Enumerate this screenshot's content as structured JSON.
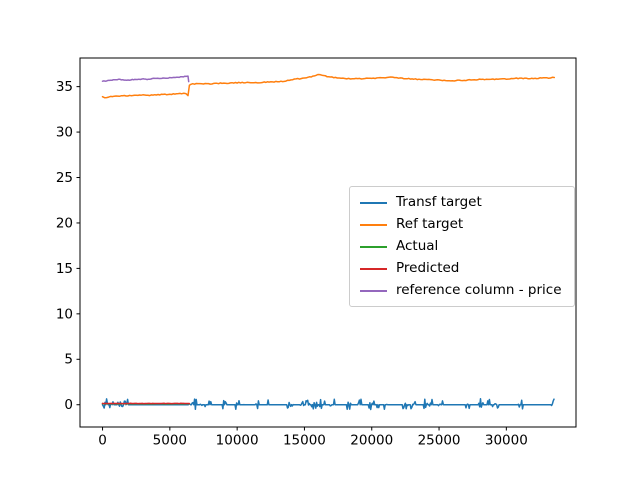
{
  "figure": {
    "background_color": "#ffffff",
    "axes_edge_color": "#000000",
    "legend_edge_color": "#cccccc"
  },
  "chart_data": {
    "type": "line",
    "title": "",
    "xlabel": "",
    "ylabel": "",
    "grid": false,
    "legend_position": "center-right",
    "xlim": [
      -1675,
      35175
    ],
    "ylim": [
      -2.45,
      38.15
    ],
    "x_ticks": [
      0,
      5000,
      10000,
      15000,
      20000,
      25000,
      30000
    ],
    "y_ticks": [
      0,
      5,
      10,
      15,
      20,
      25,
      30,
      35
    ],
    "series": [
      {
        "name": "Transf target",
        "color": "#1f77b4",
        "generator": "noisy-baseline",
        "x_range": [
          0,
          33560
        ],
        "step": 60,
        "baseline": 0,
        "spike_prob": 0.5,
        "spike_amplitude": [
          -0.52,
          0.66
        ],
        "seed": 42,
        "spike_clusters": [
          [
            0,
            1900
          ],
          [
            6350,
            8300
          ],
          [
            8900,
            9250
          ],
          [
            9900,
            10500
          ],
          [
            11400,
            11650
          ],
          [
            12200,
            12350
          ],
          [
            13700,
            14250
          ],
          [
            14700,
            16600
          ],
          [
            16900,
            17350
          ],
          [
            18100,
            18500
          ],
          [
            19000,
            19450
          ],
          [
            19800,
            20600
          ],
          [
            20900,
            21450
          ],
          [
            22300,
            23300
          ],
          [
            23800,
            24600
          ],
          [
            24800,
            25450
          ],
          [
            26900,
            27600
          ],
          [
            27900,
            28300
          ],
          [
            28600,
            29400
          ],
          [
            30900,
            31250
          ],
          [
            33350,
            33560
          ]
        ]
      },
      {
        "name": "Ref target",
        "color": "#ff7f0e",
        "noise": 0.045,
        "noise_step": 130,
        "seed": 7,
        "points": [
          [
            0,
            33.85
          ],
          [
            300,
            33.8
          ],
          [
            600,
            33.9
          ],
          [
            1000,
            33.95
          ],
          [
            1500,
            34.0
          ],
          [
            2000,
            34.0
          ],
          [
            2500,
            34.05
          ],
          [
            3000,
            34.1
          ],
          [
            3500,
            34.05
          ],
          [
            4000,
            34.1
          ],
          [
            4500,
            34.15
          ],
          [
            5000,
            34.15
          ],
          [
            5500,
            34.2
          ],
          [
            6000,
            34.25
          ],
          [
            6200,
            34.2
          ],
          [
            6350,
            34.05
          ],
          [
            6450,
            35.15
          ],
          [
            6700,
            35.3
          ],
          [
            7500,
            35.3
          ],
          [
            8500,
            35.35
          ],
          [
            9500,
            35.4
          ],
          [
            10500,
            35.45
          ],
          [
            11500,
            35.45
          ],
          [
            12500,
            35.5
          ],
          [
            13000,
            35.55
          ],
          [
            13500,
            35.6
          ],
          [
            14000,
            35.75
          ],
          [
            14500,
            35.85
          ],
          [
            15000,
            35.95
          ],
          [
            15500,
            36.1
          ],
          [
            16000,
            36.3
          ],
          [
            16300,
            36.25
          ],
          [
            16800,
            36.1
          ],
          [
            17300,
            36.0
          ],
          [
            18000,
            35.9
          ],
          [
            18700,
            35.85
          ],
          [
            19500,
            35.9
          ],
          [
            20000,
            35.9
          ],
          [
            20500,
            35.95
          ],
          [
            21000,
            36.0
          ],
          [
            21400,
            36.1
          ],
          [
            21700,
            36.0
          ],
          [
            22000,
            35.95
          ],
          [
            22500,
            35.9
          ],
          [
            23000,
            35.85
          ],
          [
            23500,
            35.8
          ],
          [
            24000,
            35.75
          ],
          [
            24500,
            35.75
          ],
          [
            25000,
            35.7
          ],
          [
            25500,
            35.7
          ],
          [
            26000,
            35.65
          ],
          [
            26500,
            35.7
          ],
          [
            27000,
            35.7
          ],
          [
            27500,
            35.75
          ],
          [
            28000,
            35.8
          ],
          [
            28500,
            35.8
          ],
          [
            29000,
            35.8
          ],
          [
            29500,
            35.85
          ],
          [
            30000,
            35.85
          ],
          [
            30500,
            35.9
          ],
          [
            31000,
            35.9
          ],
          [
            31500,
            35.9
          ],
          [
            32000,
            35.9
          ],
          [
            32500,
            35.95
          ],
          [
            33000,
            35.95
          ],
          [
            33560,
            36.0
          ]
        ]
      },
      {
        "name": "Actual",
        "color": "#2ca02c",
        "noise": 0.01,
        "noise_step": 120,
        "seed": 3,
        "points": [
          [
            0,
            0.1
          ],
          [
            6450,
            0.1
          ]
        ]
      },
      {
        "name": "Predicted",
        "color": "#d62728",
        "noise": 0.015,
        "noise_step": 110,
        "seed": 9,
        "points": [
          [
            0,
            0.14
          ],
          [
            6450,
            0.14
          ]
        ]
      },
      {
        "name": "reference column - price",
        "color": "#9467bd",
        "noise": 0.035,
        "noise_step": 120,
        "seed": 5,
        "points": [
          [
            0,
            35.6
          ],
          [
            300,
            35.65
          ],
          [
            600,
            35.7
          ],
          [
            900,
            35.75
          ],
          [
            1200,
            35.8
          ],
          [
            1500,
            35.75
          ],
          [
            1800,
            35.7
          ],
          [
            2100,
            35.75
          ],
          [
            2400,
            35.8
          ],
          [
            2700,
            35.8
          ],
          [
            3000,
            35.85
          ],
          [
            3300,
            35.8
          ],
          [
            3600,
            35.85
          ],
          [
            3900,
            35.9
          ],
          [
            4200,
            35.9
          ],
          [
            4500,
            35.95
          ],
          [
            4800,
            35.95
          ],
          [
            5100,
            36.0
          ],
          [
            5400,
            36.0
          ],
          [
            5700,
            36.05
          ],
          [
            6000,
            36.1
          ],
          [
            6200,
            36.1
          ],
          [
            6350,
            36.15
          ],
          [
            6400,
            35.55
          ]
        ]
      }
    ]
  }
}
